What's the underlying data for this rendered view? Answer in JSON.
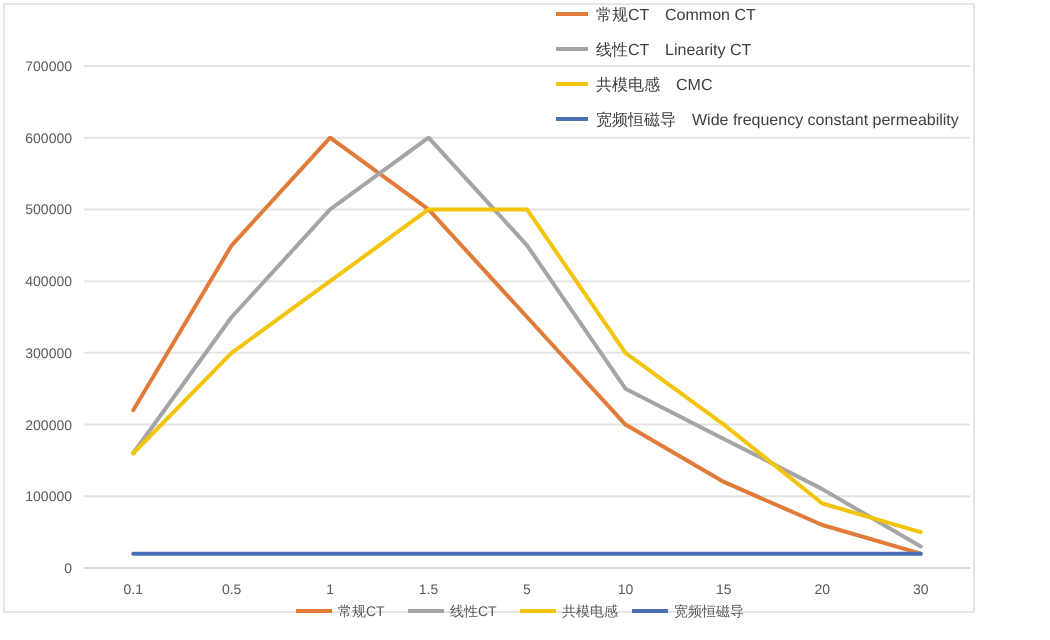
{
  "chart_data": {
    "type": "line",
    "categories": [
      "0.1",
      "0.5",
      "1",
      "1.5",
      "5",
      "10",
      "15",
      "20",
      "30"
    ],
    "series": [
      {
        "name": "常规CT",
        "color": "#e07b39",
        "values": [
          220000,
          450000,
          600000,
          500000,
          350000,
          200000,
          120000,
          60000,
          20000
        ]
      },
      {
        "name": "线性CT",
        "color": "#a5a5a5",
        "values": [
          160000,
          350000,
          500000,
          600000,
          450000,
          250000,
          180000,
          110000,
          30000
        ]
      },
      {
        "name": "共模电感",
        "color": "#f2c40c",
        "values": [
          160000,
          300000,
          400000,
          500000,
          500000,
          300000,
          200000,
          90000,
          50000
        ]
      },
      {
        "name": "宽频恒磁导",
        "color": "#4a6fb5",
        "values": [
          20000,
          20000,
          20000,
          20000,
          20000,
          20000,
          20000,
          20000,
          20000
        ]
      }
    ],
    "ylim": [
      0,
      700000
    ],
    "yticks": [
      0,
      100000,
      200000,
      300000,
      400000,
      500000,
      600000,
      700000
    ],
    "grid": "y",
    "legend": "bottom",
    "annotations": [
      "常规CT　Common CT",
      "线性CT　Linearity CT",
      "共模电感　CMC",
      "宽频恒磁导　Wide frequency constant permeability"
    ]
  }
}
